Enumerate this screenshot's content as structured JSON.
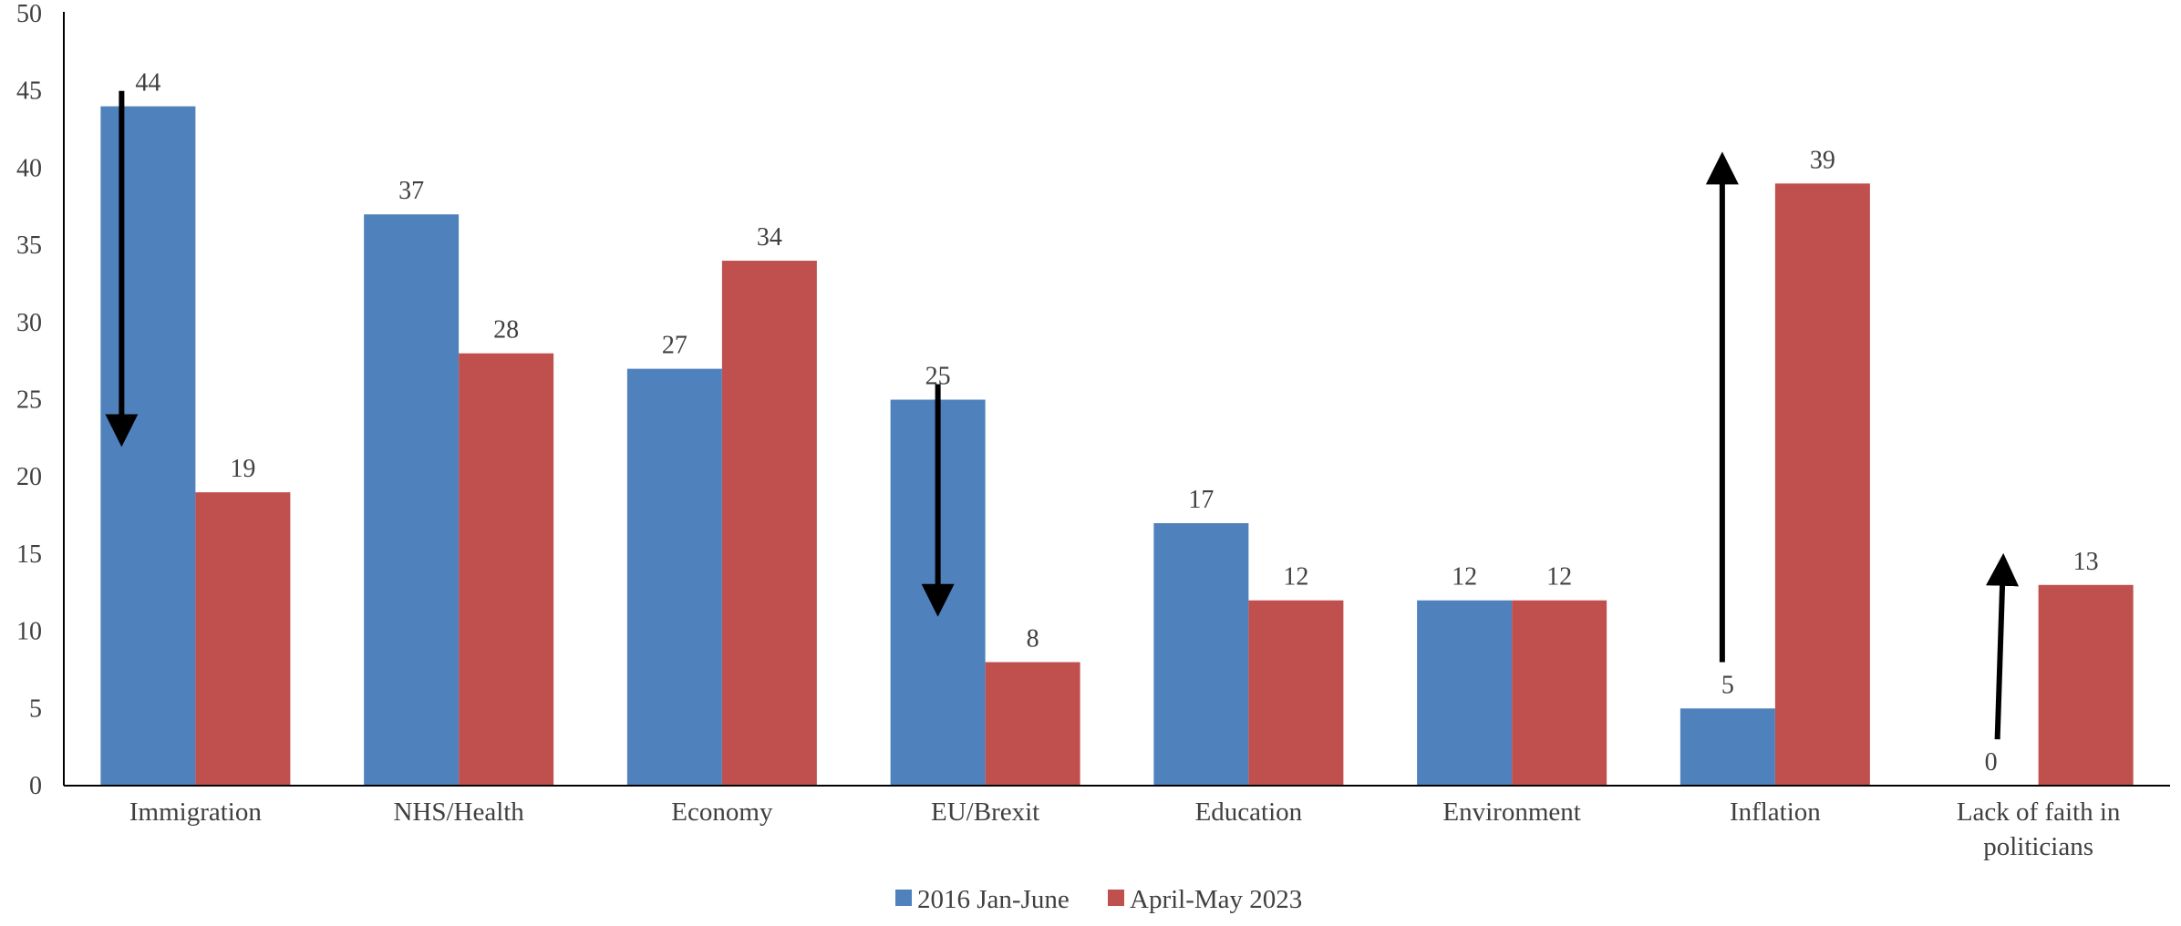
{
  "chart_data": {
    "type": "bar",
    "categories": [
      [
        "Immigration"
      ],
      [
        "NHS/Health"
      ],
      [
        "Economy"
      ],
      [
        "EU/Brexit"
      ],
      [
        "Education"
      ],
      [
        "Environment"
      ],
      [
        "Inflation"
      ],
      [
        "Lack of faith in",
        "politicians"
      ]
    ],
    "series": [
      {
        "name": "2016 Jan-June",
        "color": "#4f81bd",
        "values": [
          44,
          37,
          27,
          25,
          17,
          12,
          5,
          0
        ]
      },
      {
        "name": "April-May 2023",
        "color": "#c0504d",
        "values": [
          19,
          28,
          34,
          8,
          12,
          12,
          39,
          13
        ]
      }
    ],
    "ylim": [
      0,
      50
    ],
    "yticks": [
      0,
      5,
      10,
      15,
      20,
      25,
      30,
      35,
      40,
      45,
      50
    ],
    "title": "",
    "xlabel": "",
    "ylabel": "",
    "grid": false,
    "legend_position": "bottom-center",
    "annotations": [
      {
        "type": "arrow",
        "direction": "down",
        "category": "Immigration",
        "from": 45,
        "to": 23
      },
      {
        "type": "arrow",
        "direction": "down",
        "category": "EU/Brexit",
        "from": 26,
        "to": 12
      },
      {
        "type": "arrow",
        "direction": "up",
        "category": "Inflation",
        "from": 8,
        "to": 40
      },
      {
        "type": "arrow",
        "direction": "up",
        "category": "Lack of faith in politicians",
        "from": 3,
        "to": 14
      }
    ],
    "colors": {
      "axis": "#000000",
      "text": "#404040",
      "arrow": "#000000"
    }
  }
}
